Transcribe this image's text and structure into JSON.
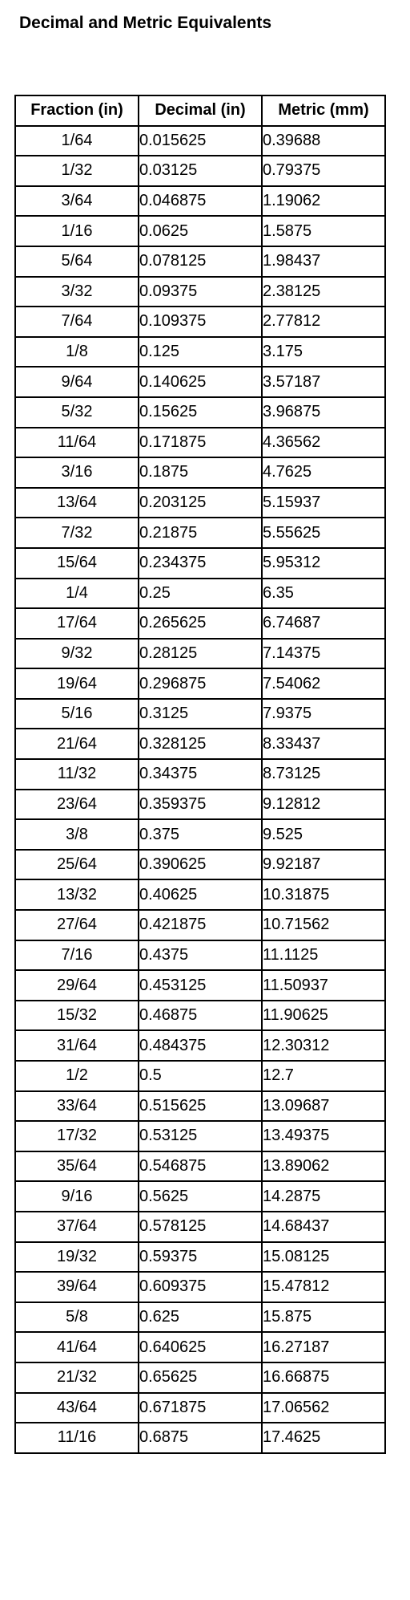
{
  "title": "Decimal and Metric Equivalents",
  "table": {
    "headers": [
      "Fraction (in)",
      "Decimal (in)",
      "Metric (mm)"
    ],
    "rows": [
      [
        "1/64",
        "0.015625",
        "0.39688"
      ],
      [
        "1/32",
        "0.03125",
        "0.79375"
      ],
      [
        "3/64",
        "0.046875",
        "1.19062"
      ],
      [
        "1/16",
        "0.0625",
        "1.5875"
      ],
      [
        "5/64",
        "0.078125",
        "1.98437"
      ],
      [
        "3/32",
        "0.09375",
        "2.38125"
      ],
      [
        "7/64",
        "0.109375",
        "2.77812"
      ],
      [
        "1/8",
        "0.125",
        "3.175"
      ],
      [
        "9/64",
        "0.140625",
        "3.57187"
      ],
      [
        "5/32",
        "0.15625",
        "3.96875"
      ],
      [
        "11/64",
        "0.171875",
        "4.36562"
      ],
      [
        "3/16",
        "0.1875",
        "4.7625"
      ],
      [
        "13/64",
        "0.203125",
        "5.15937"
      ],
      [
        "7/32",
        "0.21875",
        "5.55625"
      ],
      [
        "15/64",
        "0.234375",
        "5.95312"
      ],
      [
        "1/4",
        "0.25",
        "6.35"
      ],
      [
        "17/64",
        "0.265625",
        "6.74687"
      ],
      [
        "9/32",
        "0.28125",
        "7.14375"
      ],
      [
        "19/64",
        "0.296875",
        "7.54062"
      ],
      [
        "5/16",
        "0.3125",
        "7.9375"
      ],
      [
        "21/64",
        "0.328125",
        "8.33437"
      ],
      [
        "11/32",
        "0.34375",
        "8.73125"
      ],
      [
        "23/64",
        "0.359375",
        "9.12812"
      ],
      [
        "3/8",
        "0.375",
        "9.525"
      ],
      [
        "25/64",
        "0.390625",
        "9.92187"
      ],
      [
        "13/32",
        "0.40625",
        "10.31875"
      ],
      [
        "27/64",
        "0.421875",
        "10.71562"
      ],
      [
        "7/16",
        "0.4375",
        "11.1125"
      ],
      [
        "29/64",
        "0.453125",
        "11.50937"
      ],
      [
        "15/32",
        "0.46875",
        "11.90625"
      ],
      [
        "31/64",
        "0.484375",
        "12.30312"
      ],
      [
        "1/2",
        "0.5",
        "12.7"
      ],
      [
        "33/64",
        "0.515625",
        "13.09687"
      ],
      [
        "17/32",
        "0.53125",
        "13.49375"
      ],
      [
        "35/64",
        "0.546875",
        "13.89062"
      ],
      [
        "9/16",
        "0.5625",
        "14.2875"
      ],
      [
        "37/64",
        "0.578125",
        "14.68437"
      ],
      [
        "19/32",
        "0.59375",
        "15.08125"
      ],
      [
        "39/64",
        "0.609375",
        "15.47812"
      ],
      [
        "5/8",
        "0.625",
        "15.875"
      ],
      [
        "41/64",
        "0.640625",
        "16.27187"
      ],
      [
        "21/32",
        "0.65625",
        "16.66875"
      ],
      [
        "43/64",
        "0.671875",
        "17.06562"
      ],
      [
        "11/16",
        "0.6875",
        "17.4625"
      ]
    ]
  }
}
